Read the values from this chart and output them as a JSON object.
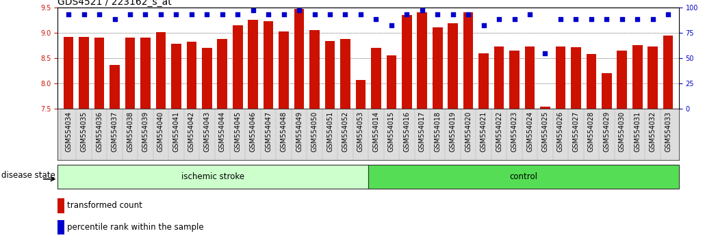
{
  "title": "GDS4521 / 223162_s_at",
  "categories": [
    "GSM554034",
    "GSM554035",
    "GSM554036",
    "GSM554037",
    "GSM554038",
    "GSM554039",
    "GSM554040",
    "GSM554041",
    "GSM554042",
    "GSM554043",
    "GSM554044",
    "GSM554045",
    "GSM554046",
    "GSM554047",
    "GSM554048",
    "GSM554049",
    "GSM554050",
    "GSM554051",
    "GSM554052",
    "GSM554053",
    "GSM554014",
    "GSM554015",
    "GSM554016",
    "GSM554017",
    "GSM554018",
    "GSM554019",
    "GSM554020",
    "GSM554021",
    "GSM554022",
    "GSM554023",
    "GSM554024",
    "GSM554025",
    "GSM554026",
    "GSM554027",
    "GSM554028",
    "GSM554029",
    "GSM554030",
    "GSM554031",
    "GSM554032",
    "GSM554033"
  ],
  "bar_values": [
    8.92,
    8.92,
    8.9,
    8.36,
    8.9,
    8.9,
    9.01,
    8.78,
    8.82,
    8.7,
    8.88,
    9.15,
    9.25,
    9.22,
    9.02,
    9.47,
    9.05,
    8.83,
    8.87,
    8.07,
    8.7,
    8.55,
    9.35,
    9.4,
    9.1,
    9.19,
    9.4,
    8.6,
    8.73,
    8.65,
    8.73,
    7.55,
    8.73,
    8.72,
    8.58,
    8.2,
    8.65,
    8.75,
    8.73,
    8.95
  ],
  "percentile_values": [
    93,
    93,
    93,
    88,
    93,
    93,
    93,
    93,
    93,
    93,
    93,
    93,
    97,
    93,
    93,
    97,
    93,
    93,
    93,
    93,
    88,
    82,
    93,
    97,
    93,
    93,
    93,
    82,
    88,
    88,
    93,
    55,
    88,
    88,
    88,
    88,
    88,
    88,
    88,
    93
  ],
  "group1_label": "ischemic stroke",
  "group2_label": "control",
  "group1_count": 20,
  "group2_count": 20,
  "bar_color": "#cc1100",
  "dot_color": "#0000cc",
  "group1_bg": "#ccffcc",
  "group2_bg": "#55dd55",
  "ylim_left": [
    7.5,
    9.5
  ],
  "ylim_right": [
    0,
    100
  ],
  "yticks_left": [
    7.5,
    8.0,
    8.5,
    9.0,
    9.5
  ],
  "yticks_right": [
    0,
    25,
    50,
    75,
    100
  ],
  "disease_state_label": "disease state",
  "legend_bar_label": "transformed count",
  "legend_dot_label": "percentile rank within the sample",
  "title_fontsize": 10,
  "tick_fontsize": 7.0,
  "label_fontsize": 8.5,
  "xtick_bg": "#dddddd"
}
